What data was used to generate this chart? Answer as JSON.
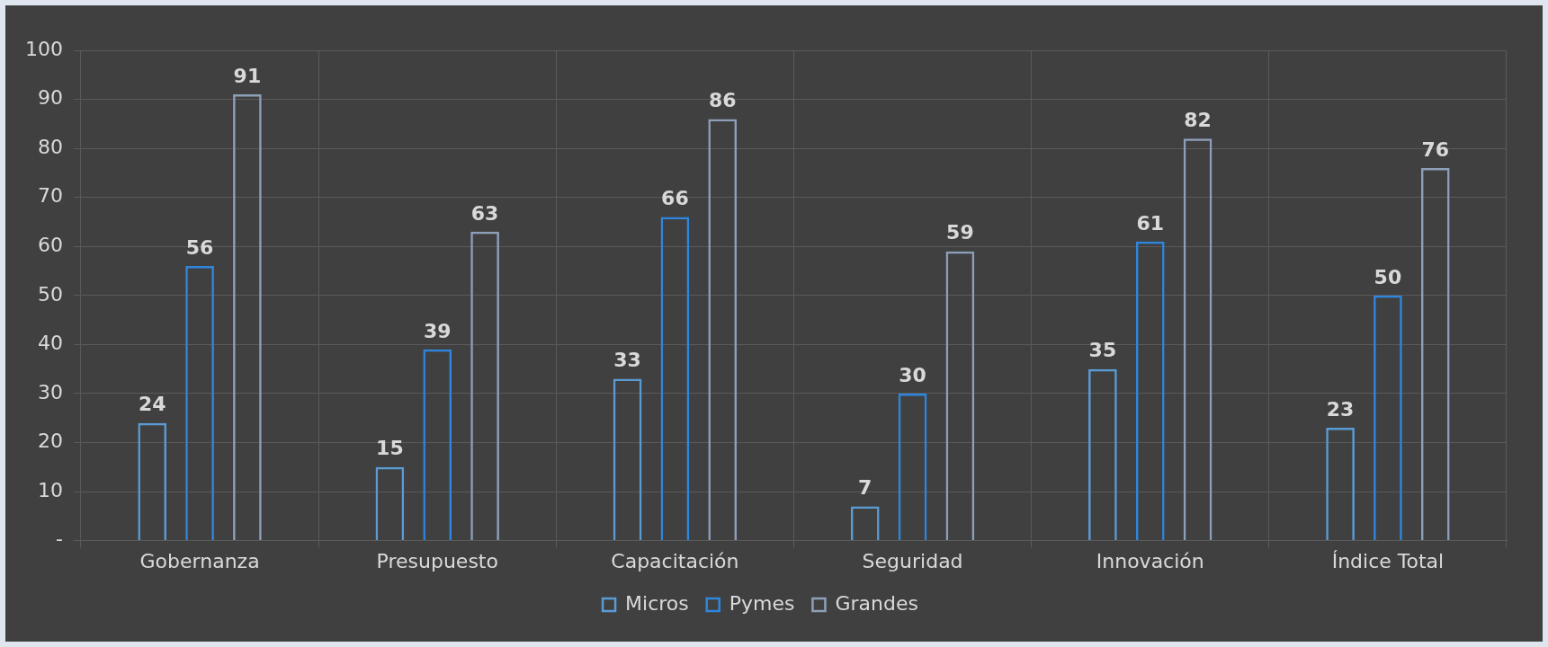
{
  "chart_data": {
    "type": "bar",
    "categories": [
      "Gobernanza",
      "Presupuesto",
      "Capacitación",
      "Seguridad",
      "Innovación",
      "Índice Total"
    ],
    "series": [
      {
        "name": "Micros",
        "color": "#5b9bd5",
        "values": [
          24,
          15,
          33,
          7,
          35,
          23
        ]
      },
      {
        "name": "Pymes",
        "color": "#2e86de",
        "values": [
          56,
          39,
          66,
          30,
          61,
          50
        ]
      },
      {
        "name": "Grandes",
        "color": "#8e9fba",
        "values": [
          91,
          63,
          86,
          59,
          82,
          76
        ]
      }
    ],
    "ylim": [
      0,
      100
    ],
    "yticks": [
      {
        "value": 0,
        "label": "-"
      },
      10,
      20,
      30,
      40,
      50,
      60,
      70,
      80,
      90,
      100
    ],
    "grid": true,
    "legend": "bottom",
    "data_labels": true
  }
}
